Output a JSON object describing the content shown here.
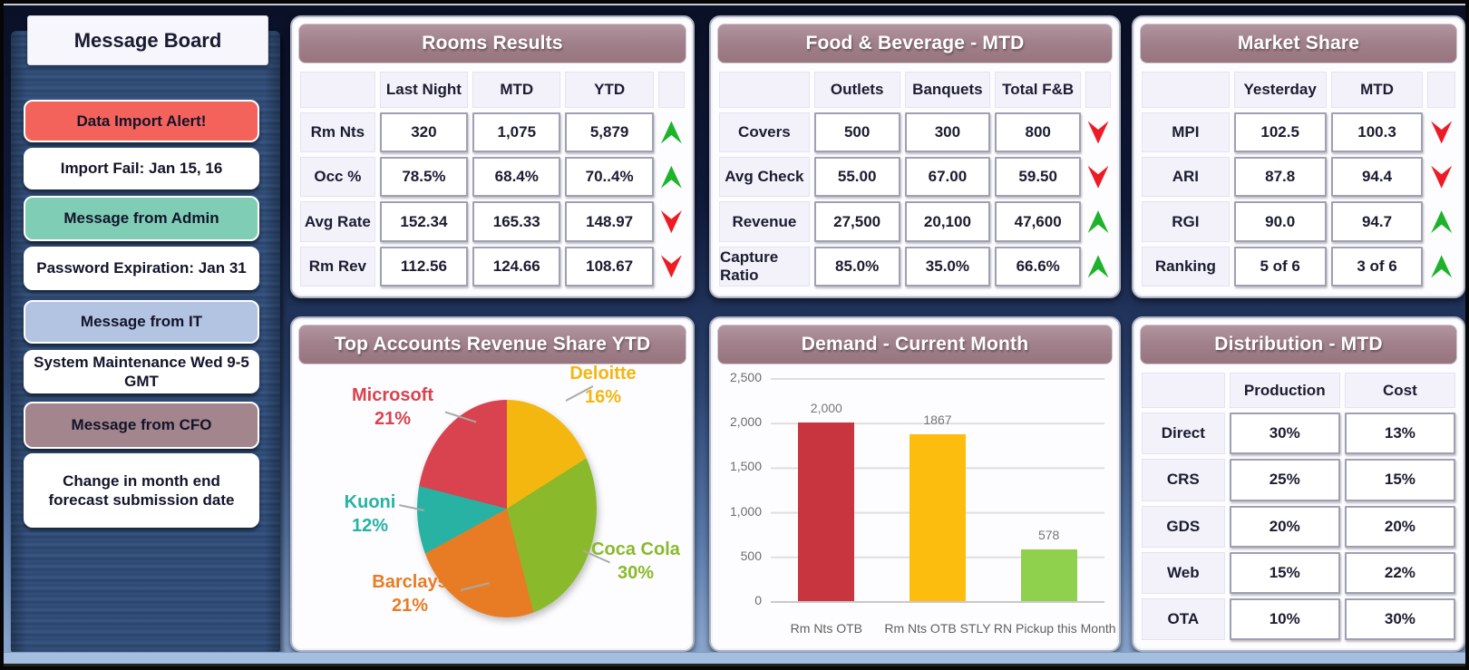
{
  "sidebar": {
    "title": "Message Board",
    "messages": [
      {
        "label": "Data Import Alert!",
        "type": "alert",
        "color": "#f4625c"
      },
      {
        "label": "Import Fail: Jan 15, 16",
        "type": "info",
        "color": "#ffffff"
      },
      {
        "label": "Message from Admin",
        "type": "admin",
        "color": "#7ecdb4"
      },
      {
        "label": "Password Expiration: Jan 31",
        "type": "info",
        "color": "#ffffff"
      },
      {
        "label": "Message from IT",
        "type": "it",
        "color": "#b3c3e2"
      },
      {
        "label": "System Maintenance Wed 9-5 GMT",
        "type": "info",
        "color": "#ffffff"
      },
      {
        "label": "Message from CFO",
        "type": "cfo",
        "color": "#a3858e"
      },
      {
        "label": "Change in month end forecast submission date",
        "type": "info",
        "color": "#ffffff"
      }
    ]
  },
  "theme": {
    "panel_header_color": "#a1818c",
    "up_arrow_color": "#1db32a",
    "down_arrow_color": "#ee1b24",
    "background_top": "#0a1026",
    "background_bottom": "#87a3cc"
  },
  "panels": {
    "rooms": {
      "title": "Rooms Results",
      "columns": [
        "Last Night",
        "MTD",
        "YTD"
      ],
      "rows": [
        {
          "label": "Rm Nts",
          "values": [
            "320",
            "1,075",
            "5,879"
          ],
          "trend": "up"
        },
        {
          "label": "Occ %",
          "values": [
            "78.5%",
            "68.4%",
            "70..4%"
          ],
          "trend": "up"
        },
        {
          "label": "Avg Rate",
          "values": [
            "152.34",
            "165.33",
            "148.97"
          ],
          "trend": "down"
        },
        {
          "label": "Rm Rev",
          "values": [
            "112.56",
            "124.66",
            "108.67"
          ],
          "trend": "down"
        }
      ]
    },
    "fnb": {
      "title": "Food & Beverage - MTD",
      "columns": [
        "Outlets",
        "Banquets",
        "Total F&B"
      ],
      "rows": [
        {
          "label": "Covers",
          "values": [
            "500",
            "300",
            "800"
          ],
          "trend": "down"
        },
        {
          "label": "Avg Check",
          "values": [
            "55.00",
            "67.00",
            "59.50"
          ],
          "trend": "down"
        },
        {
          "label": "Revenue",
          "values": [
            "27,500",
            "20,100",
            "47,600"
          ],
          "trend": "up"
        },
        {
          "label": "Capture Ratio",
          "values": [
            "85.0%",
            "35.0%",
            "66.6%"
          ],
          "trend": "up"
        }
      ]
    },
    "market": {
      "title": "Market Share",
      "columns": [
        "Yesterday",
        "MTD"
      ],
      "rows": [
        {
          "label": "MPI",
          "values": [
            "102.5",
            "100.3"
          ],
          "trend": "down"
        },
        {
          "label": "ARI",
          "values": [
            "87.8",
            "94.4"
          ],
          "trend": "down"
        },
        {
          "label": "RGI",
          "values": [
            "90.0",
            "94.7"
          ],
          "trend": "up"
        },
        {
          "label": "Ranking",
          "values": [
            "5 of 6",
            "3 of 6"
          ],
          "trend": "up"
        }
      ]
    },
    "distribution": {
      "title": "Distribution - MTD",
      "columns": [
        "Production",
        "Cost"
      ],
      "rows": [
        {
          "label": "Direct",
          "values": [
            "30%",
            "13%"
          ]
        },
        {
          "label": "CRS",
          "values": [
            "25%",
            "15%"
          ]
        },
        {
          "label": "GDS",
          "values": [
            "20%",
            "20%"
          ]
        },
        {
          "label": "Web",
          "values": [
            "15%",
            "22%"
          ]
        },
        {
          "label": "OTA",
          "values": [
            "10%",
            "30%"
          ]
        }
      ]
    }
  },
  "chart_data": [
    {
      "type": "pie",
      "title": "Top Accounts Revenue Share YTD",
      "start_angle_deg": 0,
      "direction": "clockwise",
      "legend_position": "callout-labels",
      "slices": [
        {
          "label": "Deloitte",
          "value": 16,
          "pct": "16%",
          "color": "#f3b70f"
        },
        {
          "label": "Coca Cola",
          "value": 30,
          "pct": "30%",
          "color": "#8ab92b"
        },
        {
          "label": "Barclays",
          "value": 21,
          "pct": "21%",
          "color": "#e87c24"
        },
        {
          "label": "Kuoni",
          "value": 12,
          "pct": "12%",
          "color": "#27b2a3"
        },
        {
          "label": "Microsoft",
          "value": 21,
          "pct": "21%",
          "color": "#d8434f"
        }
      ]
    },
    {
      "type": "bar",
      "title": "Demand - Current Month",
      "categories": [
        "Rm Nts OTB",
        "Rm Nts OTB STLY",
        "RN Pickup this Month"
      ],
      "values": [
        2000,
        1867,
        578
      ],
      "value_labels": [
        "2,000",
        "1867",
        "578"
      ],
      "colors": [
        "#c9353f",
        "#fcbd0e",
        "#8fd04c"
      ],
      "ylim": [
        0,
        2500
      ],
      "yticks": [
        "2,500",
        "2,000",
        "1,500",
        "1,000",
        "500",
        "0"
      ],
      "grid": true,
      "xlabel": "",
      "ylabel": ""
    }
  ]
}
